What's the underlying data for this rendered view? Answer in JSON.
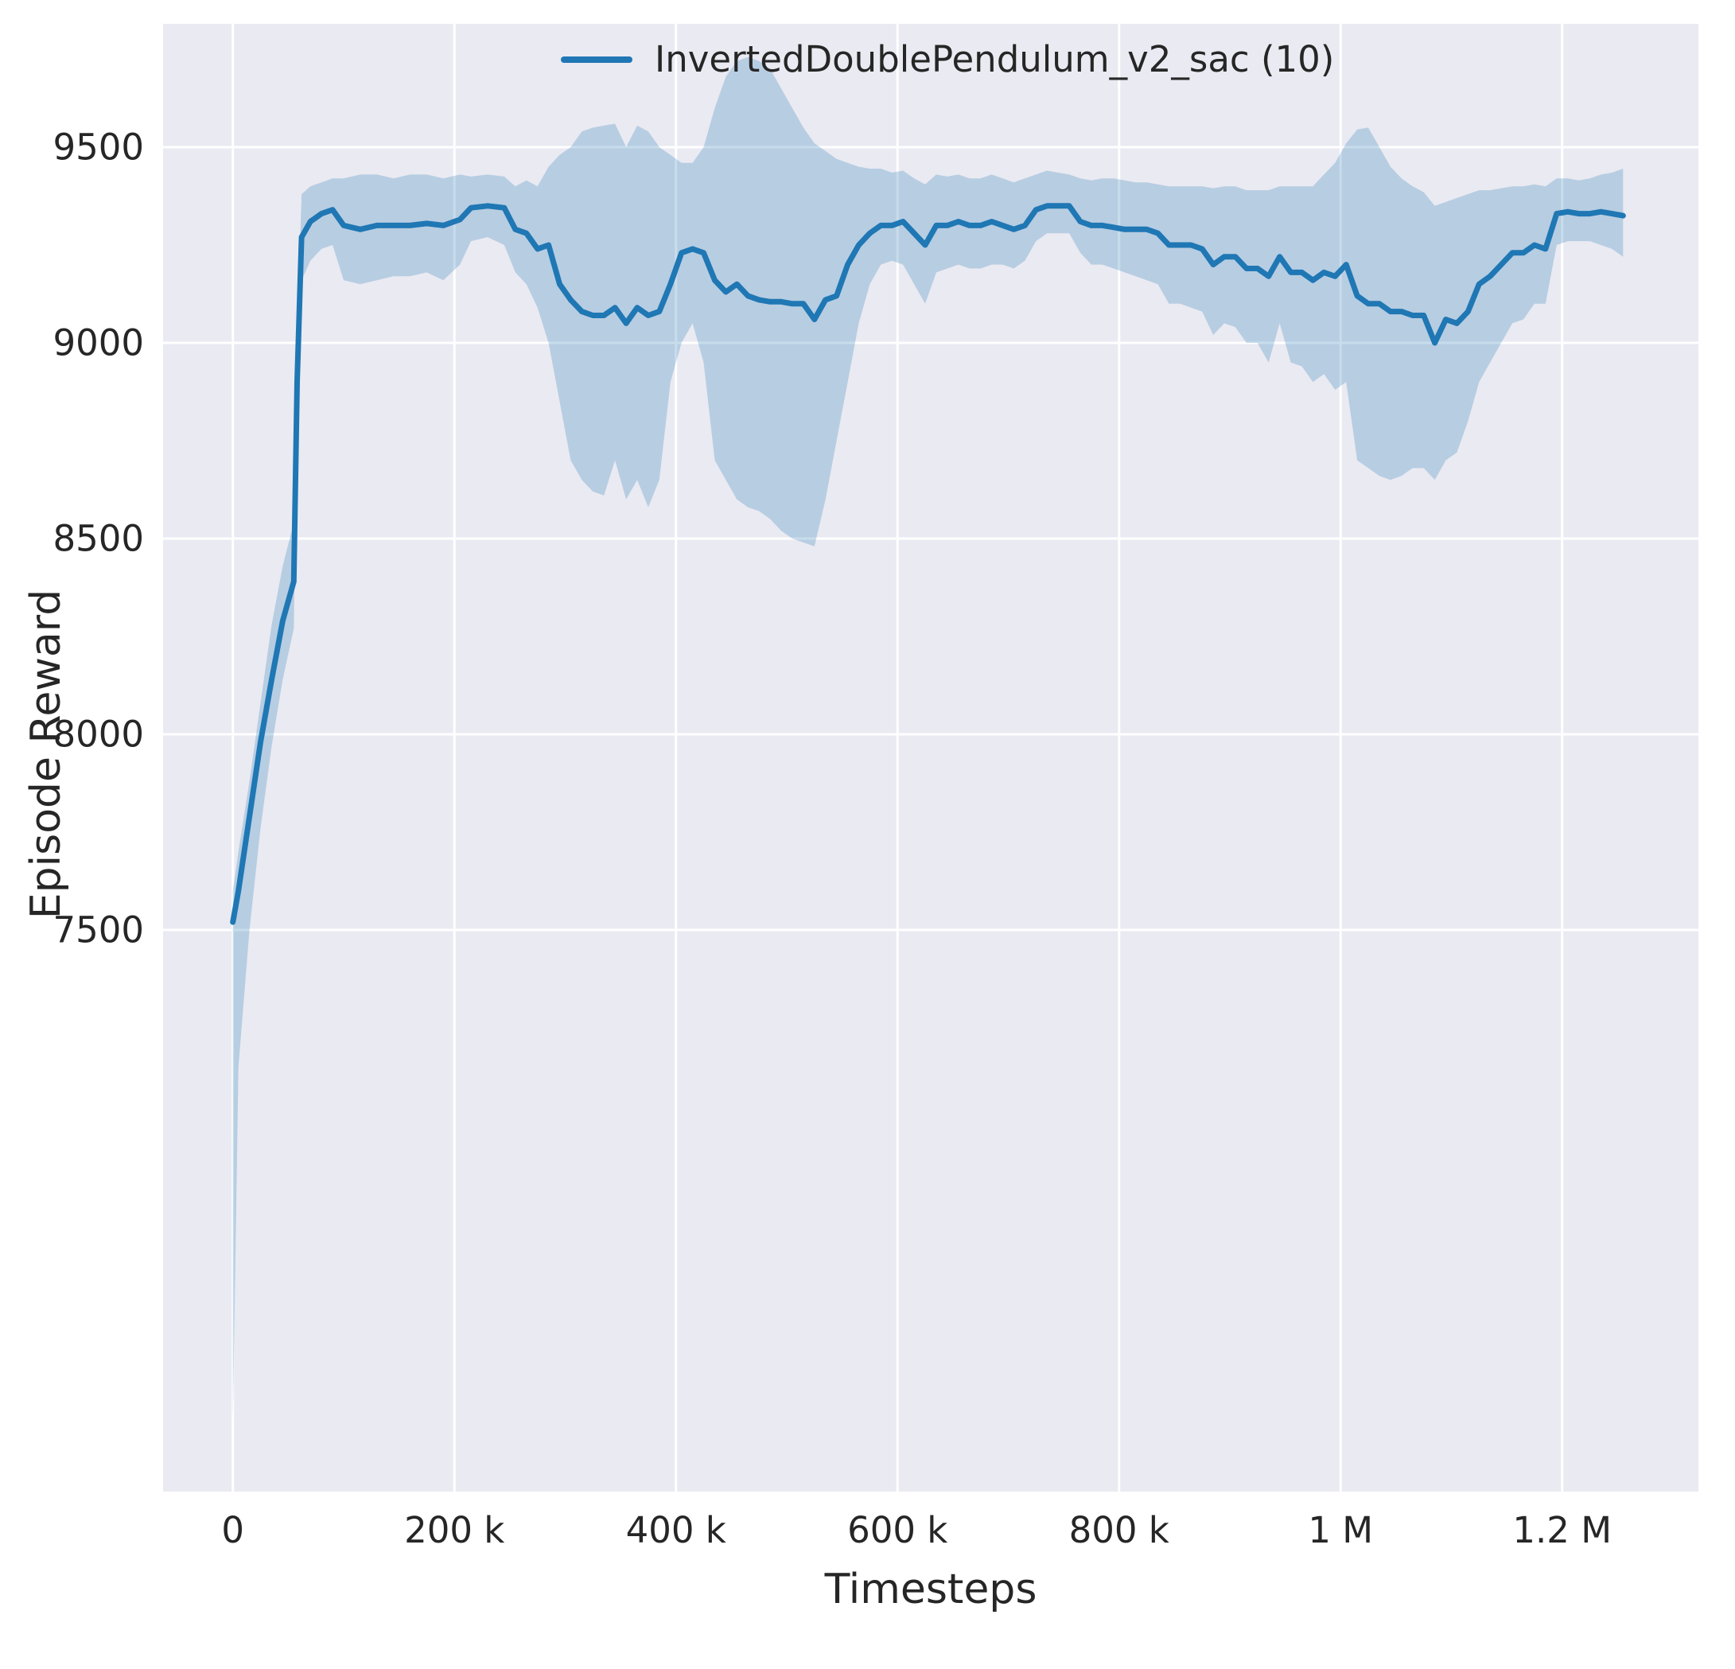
{
  "chart_data": {
    "type": "line",
    "title": "",
    "xlabel": "Timesteps",
    "ylabel": "Episode Reward",
    "xlim": [
      -63000,
      1323000
    ],
    "ylim": [
      6065,
      9815
    ],
    "grid": true,
    "legend_position": "upper center",
    "background": "#eaeaf2",
    "grid_color": "#ffffff",
    "text_color": "#262626",
    "xticks": [
      {
        "value": 0,
        "label": "0"
      },
      {
        "value": 200000,
        "label": "200 k"
      },
      {
        "value": 400000,
        "label": "400 k"
      },
      {
        "value": 600000,
        "label": "600 k"
      },
      {
        "value": 800000,
        "label": "800 k"
      },
      {
        "value": 1000000,
        "label": "1 M"
      },
      {
        "value": 1200000,
        "label": "1.2 M"
      }
    ],
    "yticks": [
      {
        "value": 7500,
        "label": "7500"
      },
      {
        "value": 8000,
        "label": "8000"
      },
      {
        "value": 8500,
        "label": "8500"
      },
      {
        "value": 9000,
        "label": "9000"
      },
      {
        "value": 9500,
        "label": "9500"
      }
    ],
    "series": [
      {
        "name": "InvertedDoublePendulum_v2_sac (10)",
        "color": "#1f77b4",
        "band_alpha": 0.25,
        "point_format": [
          "x",
          "mean",
          "lower",
          "upper"
        ],
        "points": [
          [
            0,
            7520,
            6240,
            7600
          ],
          [
            5000,
            7600,
            7150,
            7700
          ],
          [
            15000,
            7790,
            7500,
            7880
          ],
          [
            25000,
            7980,
            7760,
            8080
          ],
          [
            35000,
            8140,
            7970,
            8280
          ],
          [
            45000,
            8290,
            8140,
            8430
          ],
          [
            55000,
            8390,
            8270,
            8540
          ],
          [
            58000,
            8900,
            8800,
            9000
          ],
          [
            62000,
            9270,
            9160,
            9380
          ],
          [
            70000,
            9310,
            9210,
            9400
          ],
          [
            80000,
            9330,
            9240,
            9410
          ],
          [
            90000,
            9340,
            9250,
            9420
          ],
          [
            100000,
            9300,
            9160,
            9420
          ],
          [
            115000,
            9290,
            9150,
            9430
          ],
          [
            130000,
            9300,
            9160,
            9430
          ],
          [
            145000,
            9300,
            9170,
            9420
          ],
          [
            160000,
            9300,
            9170,
            9430
          ],
          [
            175000,
            9305,
            9180,
            9430
          ],
          [
            190000,
            9300,
            9160,
            9420
          ],
          [
            205000,
            9315,
            9200,
            9430
          ],
          [
            215000,
            9345,
            9260,
            9425
          ],
          [
            230000,
            9350,
            9270,
            9430
          ],
          [
            245000,
            9345,
            9250,
            9425
          ],
          [
            255000,
            9290,
            9180,
            9400
          ],
          [
            265000,
            9280,
            9150,
            9415
          ],
          [
            275000,
            9240,
            9090,
            9400
          ],
          [
            285000,
            9250,
            9000,
            9450
          ],
          [
            295000,
            9150,
            8850,
            9480
          ],
          [
            305000,
            9110,
            8700,
            9500
          ],
          [
            315000,
            9080,
            8650,
            9540
          ],
          [
            325000,
            9070,
            8620,
            9550
          ],
          [
            335000,
            9070,
            8610,
            9555
          ],
          [
            345000,
            9090,
            8700,
            9560
          ],
          [
            355000,
            9050,
            8600,
            9500
          ],
          [
            365000,
            9090,
            8650,
            9555
          ],
          [
            375000,
            9070,
            8580,
            9540
          ],
          [
            385000,
            9080,
            8650,
            9500
          ],
          [
            395000,
            9150,
            8900,
            9480
          ],
          [
            405000,
            9230,
            9000,
            9460
          ],
          [
            415000,
            9240,
            9050,
            9460
          ],
          [
            425000,
            9230,
            8950,
            9500
          ],
          [
            435000,
            9160,
            8700,
            9600
          ],
          [
            445000,
            9130,
            8650,
            9680
          ],
          [
            455000,
            9150,
            8600,
            9720
          ],
          [
            465000,
            9120,
            8580,
            9730
          ],
          [
            475000,
            9110,
            8570,
            9720
          ],
          [
            485000,
            9105,
            8550,
            9700
          ],
          [
            495000,
            9105,
            8520,
            9650
          ],
          [
            505000,
            9100,
            8500,
            9600
          ],
          [
            515000,
            9100,
            8490,
            9550
          ],
          [
            525000,
            9060,
            8480,
            9510
          ],
          [
            535000,
            9110,
            8600,
            9490
          ],
          [
            545000,
            9120,
            8750,
            9470
          ],
          [
            555000,
            9200,
            8900,
            9460
          ],
          [
            565000,
            9250,
            9050,
            9450
          ],
          [
            575000,
            9280,
            9150,
            9445
          ],
          [
            585000,
            9300,
            9200,
            9445
          ],
          [
            595000,
            9300,
            9210,
            9435
          ],
          [
            605000,
            9310,
            9200,
            9440
          ],
          [
            615000,
            9280,
            9150,
            9420
          ],
          [
            625000,
            9250,
            9100,
            9405
          ],
          [
            635000,
            9300,
            9180,
            9430
          ],
          [
            645000,
            9300,
            9190,
            9425
          ],
          [
            655000,
            9310,
            9200,
            9430
          ],
          [
            665000,
            9300,
            9190,
            9420
          ],
          [
            675000,
            9300,
            9190,
            9420
          ],
          [
            685000,
            9310,
            9200,
            9430
          ],
          [
            695000,
            9300,
            9200,
            9420
          ],
          [
            705000,
            9290,
            9190,
            9410
          ],
          [
            715000,
            9300,
            9210,
            9420
          ],
          [
            725000,
            9340,
            9260,
            9430
          ],
          [
            735000,
            9350,
            9280,
            9440
          ],
          [
            745000,
            9350,
            9280,
            9435
          ],
          [
            755000,
            9350,
            9280,
            9430
          ],
          [
            765000,
            9310,
            9230,
            9420
          ],
          [
            775000,
            9300,
            9200,
            9415
          ],
          [
            785000,
            9300,
            9200,
            9420
          ],
          [
            795000,
            9295,
            9190,
            9420
          ],
          [
            805000,
            9290,
            9180,
            9415
          ],
          [
            815000,
            9290,
            9170,
            9410
          ],
          [
            825000,
            9290,
            9160,
            9410
          ],
          [
            835000,
            9280,
            9150,
            9405
          ],
          [
            845000,
            9250,
            9100,
            9400
          ],
          [
            855000,
            9250,
            9100,
            9400
          ],
          [
            865000,
            9250,
            9090,
            9400
          ],
          [
            875000,
            9240,
            9080,
            9400
          ],
          [
            885000,
            9200,
            9020,
            9395
          ],
          [
            895000,
            9220,
            9050,
            9400
          ],
          [
            905000,
            9220,
            9040,
            9400
          ],
          [
            915000,
            9190,
            9000,
            9390
          ],
          [
            925000,
            9190,
            9000,
            9390
          ],
          [
            935000,
            9170,
            8950,
            9390
          ],
          [
            945000,
            9220,
            9050,
            9400
          ],
          [
            955000,
            9180,
            8950,
            9400
          ],
          [
            965000,
            9180,
            8940,
            9400
          ],
          [
            975000,
            9160,
            8900,
            9400
          ],
          [
            985000,
            9180,
            8920,
            9430
          ],
          [
            995000,
            9170,
            8880,
            9460
          ],
          [
            1005000,
            9200,
            8900,
            9510
          ],
          [
            1015000,
            9120,
            8700,
            9545
          ],
          [
            1025000,
            9100,
            8680,
            9550
          ],
          [
            1035000,
            9100,
            8660,
            9500
          ],
          [
            1045000,
            9080,
            8650,
            9450
          ],
          [
            1055000,
            9080,
            8660,
            9420
          ],
          [
            1065000,
            9070,
            8680,
            9400
          ],
          [
            1075000,
            9070,
            8680,
            9385
          ],
          [
            1085000,
            9000,
            8650,
            9350
          ],
          [
            1095000,
            9060,
            8700,
            9360
          ],
          [
            1105000,
            9050,
            8720,
            9370
          ],
          [
            1115000,
            9080,
            8800,
            9380
          ],
          [
            1125000,
            9150,
            8900,
            9390
          ],
          [
            1135000,
            9170,
            8950,
            9390
          ],
          [
            1145000,
            9200,
            9000,
            9395
          ],
          [
            1155000,
            9230,
            9050,
            9400
          ],
          [
            1165000,
            9230,
            9060,
            9400
          ],
          [
            1175000,
            9250,
            9100,
            9405
          ],
          [
            1185000,
            9240,
            9100,
            9400
          ],
          [
            1195000,
            9330,
            9250,
            9420
          ],
          [
            1205000,
            9335,
            9260,
            9420
          ],
          [
            1215000,
            9330,
            9260,
            9415
          ],
          [
            1225000,
            9330,
            9260,
            9420
          ],
          [
            1235000,
            9335,
            9250,
            9430
          ],
          [
            1245000,
            9330,
            9240,
            9435
          ],
          [
            1255000,
            9325,
            9220,
            9445
          ]
        ]
      }
    ]
  }
}
